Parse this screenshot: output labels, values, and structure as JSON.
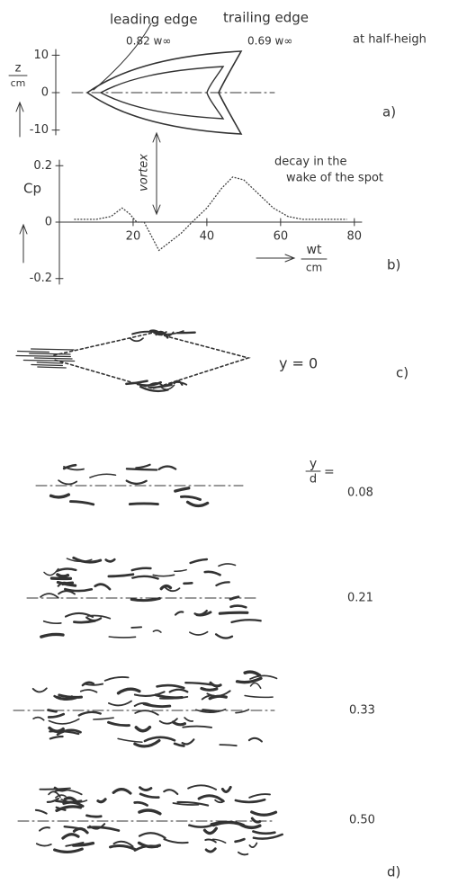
{
  "panel_a": {
    "leading_label": "leading edge",
    "leading_speed": "0.82 w∞",
    "trailing_label": "trailing edge",
    "trailing_speed": "0.69 w∞",
    "height_note": "at half-heigh",
    "axis_label_num": "z",
    "axis_label_den": "cm",
    "ylim": [
      -12,
      12
    ],
    "yticks": [
      10,
      0,
      -10
    ],
    "tag": "a)"
  },
  "chart_data": {
    "type": "line",
    "y_label": "Cp",
    "x_label_num": "wt",
    "x_label_den": "cm",
    "vortex_label": "vortex",
    "annotation_1": "decay in the",
    "annotation_2": "wake of the spot",
    "tag": "b)",
    "x": [
      4,
      10,
      14,
      17,
      19,
      21,
      23,
      25,
      27,
      30,
      33,
      36,
      40,
      44,
      47,
      50,
      54,
      58,
      62,
      66,
      72,
      78
    ],
    "values": [
      0.01,
      0.01,
      0.02,
      0.05,
      0.03,
      0.0,
      0.0,
      -0.05,
      -0.1,
      -0.07,
      -0.04,
      0.0,
      0.05,
      0.12,
      0.16,
      0.15,
      0.1,
      0.05,
      0.02,
      0.01,
      0.01,
      0.01
    ],
    "color": "#444444",
    "xlim": [
      0,
      82
    ],
    "ylim": [
      -0.22,
      0.22
    ],
    "xticks": [
      20,
      40,
      60,
      80
    ],
    "yticks": [
      0.2,
      0,
      -0.2
    ]
  },
  "panel_c": {
    "label": "y = 0",
    "tag": "c)"
  },
  "panel_d": {
    "ratio_num": "y",
    "ratio_den": "d",
    "equals": "=",
    "levels": [
      "0.08",
      "0.21",
      "0.33",
      "0.50"
    ],
    "tag": "d)"
  }
}
